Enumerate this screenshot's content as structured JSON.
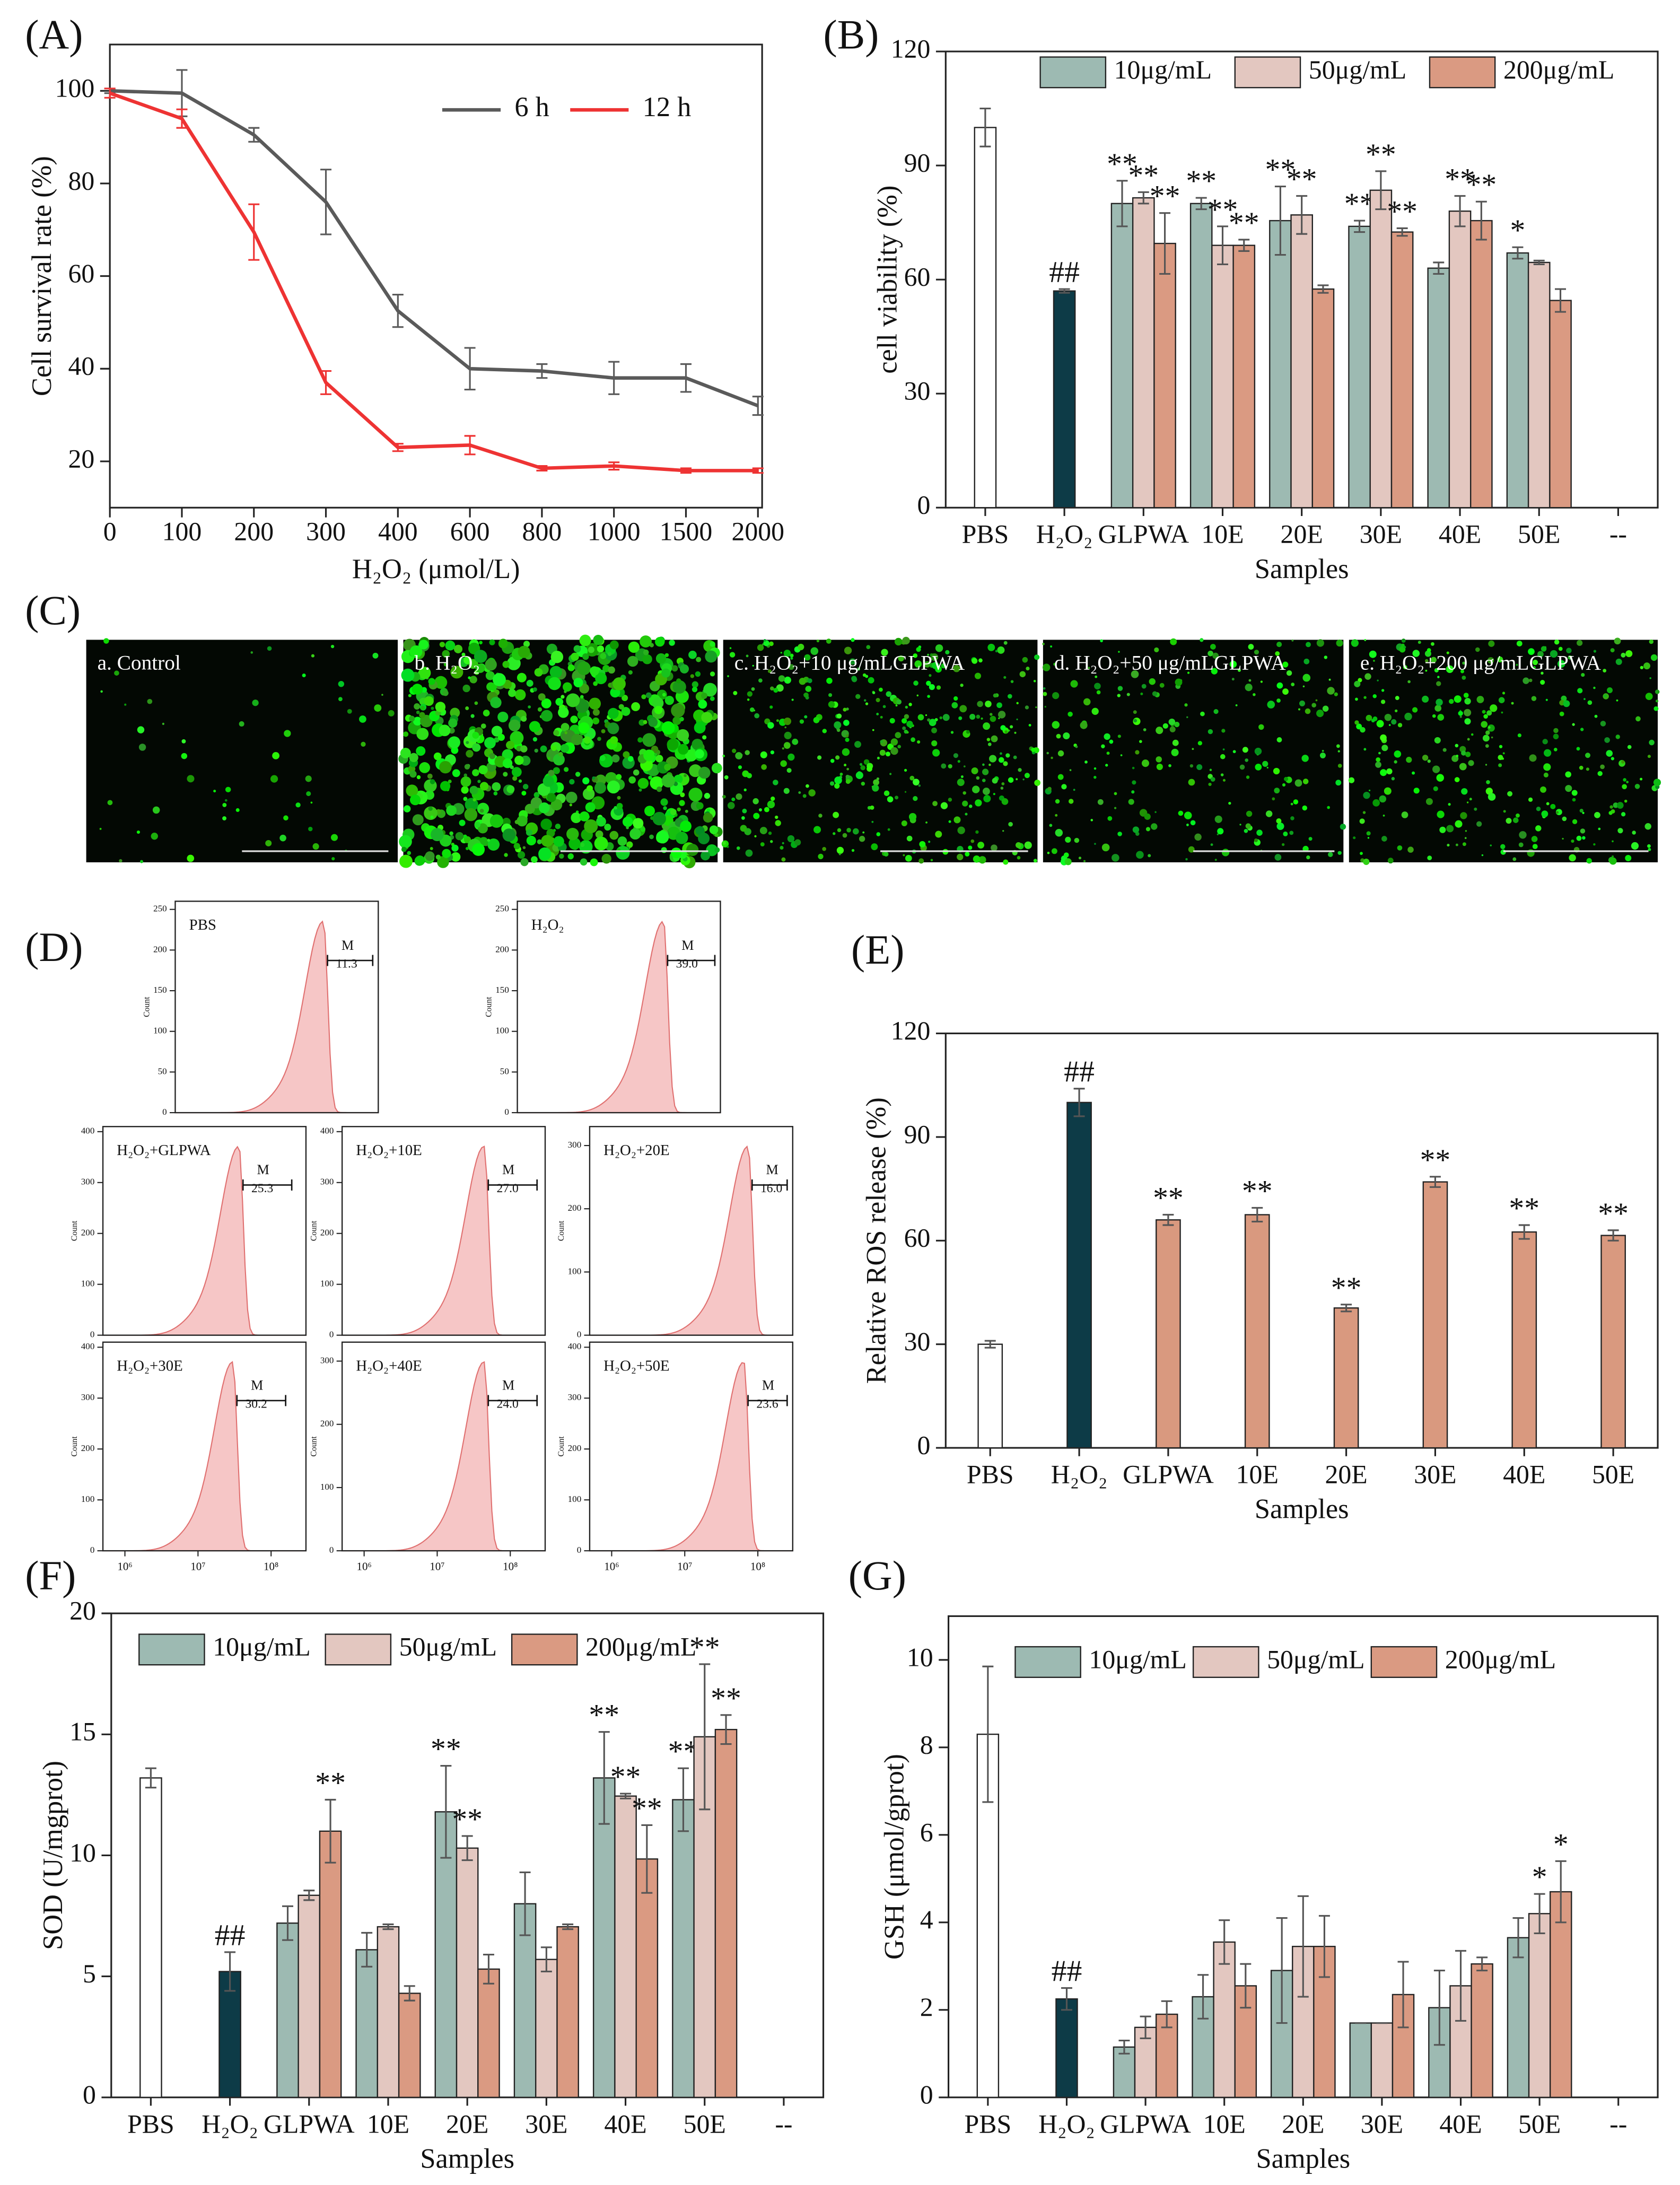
{
  "chart_data": [
    {
      "type": "line",
      "label": "(A)",
      "x_label": "H₂O₂ (μmol/L)",
      "y_label": "Cell survival rate  (%)",
      "categories": [
        "0",
        "100",
        "200",
        "300",
        "400",
        "600",
        "800",
        "1000",
        "1500",
        "2000"
      ],
      "ylim": [
        10,
        110
      ],
      "yticks": [
        20,
        40,
        60,
        80,
        100
      ],
      "legend": "upper right",
      "series": [
        {
          "name": "6 h",
          "color": "#5a5a5a",
          "values": [
            100,
            99.5,
            90.5,
            76,
            52.5,
            40,
            39.5,
            38,
            38,
            32
          ],
          "errors": [
            0.5,
            5,
            1.5,
            7,
            3.5,
            4.5,
            1.5,
            3.5,
            3,
            2
          ]
        },
        {
          "name": "12 h",
          "color": "#ee3333",
          "values": [
            99.5,
            94,
            69.5,
            37,
            23,
            23.5,
            18.5,
            19,
            18,
            18
          ],
          "errors": [
            1,
            2,
            6,
            2.5,
            0.8,
            2,
            0.5,
            0.8,
            0.5,
            0.5
          ]
        }
      ]
    },
    {
      "type": "bar",
      "label": "(B)",
      "x_label": "Samples",
      "y_label": "cell viability (%)",
      "categories": [
        "PBS",
        "H₂O₂",
        "GLPWA",
        "10E",
        "20E",
        "30E",
        "40E",
        "50E",
        "--"
      ],
      "ylim": [
        0,
        120
      ],
      "yticks": [
        0,
        30,
        60,
        90,
        120
      ],
      "legend": "upper center",
      "controls": [
        {
          "value": 100,
          "error": 5,
          "color": "#ffffff"
        },
        {
          "value": 57,
          "error": 0.5,
          "color": "#0d3b47",
          "annotation": "##"
        }
      ],
      "series": [
        {
          "name": "10μg/mL",
          "color": "#9dbab2",
          "values": [
            null,
            null,
            80,
            80,
            75.5,
            74,
            63,
            67,
            null
          ],
          "errors": [
            null,
            null,
            6,
            1.5,
            9,
            1.5,
            1.5,
            1.5,
            null
          ],
          "annotations": [
            null,
            null,
            "**",
            "**",
            "**",
            "**",
            null,
            "*",
            null
          ]
        },
        {
          "name": "50μg/mL",
          "color": "#e3c7c0",
          "values": [
            null,
            null,
            81.5,
            69,
            77,
            83.5,
            78,
            64.5,
            null
          ],
          "errors": [
            null,
            null,
            1.5,
            5,
            5,
            5,
            4,
            0.5,
            null
          ],
          "annotations": [
            null,
            null,
            "**",
            "**",
            "**",
            "**",
            "**",
            null,
            null
          ]
        },
        {
          "name": "200μg/mL",
          "color": "#da9a82",
          "values": [
            null,
            null,
            69.5,
            69,
            57.5,
            72.5,
            75.5,
            54.5,
            null
          ],
          "errors": [
            null,
            null,
            8,
            1.5,
            1,
            1,
            5,
            3,
            null
          ],
          "annotations": [
            null,
            null,
            "**",
            "**",
            null,
            "**",
            "**",
            null,
            null
          ]
        }
      ]
    },
    {
      "type": "image",
      "label": "(C)",
      "images": [
        {
          "title": "a. Control"
        },
        {
          "title": "b. H₂O₂"
        },
        {
          "title": "c. H₂O₂+10 μg/mLGLPWA"
        },
        {
          "title": "d. H₂O₂+50 μg/mLGLPWA"
        },
        {
          "title": "e. H₂O₂+200 μg/mLGLPWA"
        }
      ]
    },
    {
      "type": "flow",
      "label": "(D)",
      "y_label": "Count",
      "log_x": true,
      "color": "#f6c6c6",
      "xlim": [
        500000,
        300000000
      ],
      "xticks": [
        {
          "value": 1000000,
          "label": "10⁶"
        },
        {
          "value": 10000000,
          "label": "10⁷"
        },
        {
          "value": 100000000,
          "label": "10⁸"
        }
      ],
      "panels": [
        {
          "title": "PBS",
          "gate": "M",
          "gate_value": "11.3",
          "ylim": [
            0,
            260
          ],
          "yticks": [
            0,
            50,
            100,
            150,
            200,
            250
          ]
        },
        {
          "title": "H₂O₂",
          "gate": "M",
          "gate_value": "39.0",
          "ylim": [
            0,
            260
          ],
          "yticks": [
            0,
            50,
            100,
            150,
            200,
            250
          ]
        },
        {
          "title": "H₂O₂+GLPWA",
          "gate": "M",
          "gate_value": "25.3",
          "ylim": [
            0,
            410
          ],
          "yticks": [
            0,
            100,
            200,
            300,
            400
          ]
        },
        {
          "title": "H₂O₂+10E",
          "gate": "M",
          "gate_value": "27.0",
          "ylim": [
            0,
            410
          ],
          "yticks": [
            0,
            100,
            200,
            300,
            400
          ]
        },
        {
          "title": "H₂O₂+20E",
          "gate": "M",
          "gate_value": "16.0",
          "ylim": [
            0,
            330
          ],
          "yticks": [
            0,
            100,
            200,
            300
          ]
        },
        {
          "title": "H₂O₂+30E",
          "gate": "M",
          "gate_value": "30.2",
          "ylim": [
            0,
            410
          ],
          "yticks": [
            0,
            100,
            200,
            300,
            400
          ]
        },
        {
          "title": "H₂O₂+40E",
          "gate": "M",
          "gate_value": "24.0",
          "ylim": [
            0,
            330
          ],
          "yticks": [
            0,
            100,
            200,
            300
          ]
        },
        {
          "title": "H₂O₂+50E",
          "gate": "M",
          "gate_value": "23.6",
          "ylim": [
            0,
            410
          ],
          "yticks": [
            0,
            100,
            200,
            300,
            400
          ]
        }
      ]
    },
    {
      "type": "bar",
      "label": "(E)",
      "x_label": "Samples",
      "y_label": "Relative ROS release (%)",
      "categories": [
        "PBS",
        "H₂O₂",
        "GLPWA",
        "10E",
        "20E",
        "30E",
        "40E",
        "50E"
      ],
      "ylim": [
        0,
        120
      ],
      "yticks": [
        0,
        30,
        60,
        90,
        120
      ],
      "values": [
        30,
        100,
        66,
        67.5,
        40.5,
        77,
        62.5,
        61.5
      ],
      "errors": [
        1,
        4,
        1.5,
        2,
        1,
        1.5,
        2,
        1.5
      ],
      "colors": [
        "#ffffff",
        "#0d3b47",
        "#d9997f",
        "#d9997f",
        "#d9997f",
        "#d9997f",
        "#d9997f",
        "#d9997f"
      ],
      "annotations": [
        null,
        "##",
        "**",
        "**",
        "**",
        "**",
        "**",
        "**"
      ]
    },
    {
      "type": "bar",
      "label": "(F)",
      "x_label": "Samples",
      "y_label": "SOD (U/mgprot)",
      "categories": [
        "PBS",
        "H₂O₂",
        "GLPWA",
        "10E",
        "20E",
        "30E",
        "40E",
        "50E",
        "--"
      ],
      "ylim": [
        0,
        20
      ],
      "yticks": [
        0,
        5,
        10,
        15,
        20
      ],
      "legend": "upper left",
      "controls": [
        {
          "value": 13.2,
          "error": 0.4,
          "color": "#ffffff"
        },
        {
          "value": 5.2,
          "error": 0.8,
          "color": "#0d3b47",
          "annotation": "##"
        }
      ],
      "series": [
        {
          "name": "10μg/mL",
          "color": "#9dbab2",
          "values": [
            null,
            null,
            7.2,
            6.1,
            11.8,
            8,
            13.2,
            12.3,
            null
          ],
          "errors": [
            null,
            null,
            0.7,
            0.7,
            1.9,
            1.3,
            1.9,
            1.3,
            null
          ],
          "annotations": [
            null,
            null,
            null,
            null,
            "**",
            null,
            "**",
            "**",
            null
          ]
        },
        {
          "name": "50μg/mL",
          "color": "#e3c7c0",
          "values": [
            null,
            null,
            8.35,
            7.05,
            10.3,
            5.7,
            12.45,
            14.9,
            null
          ],
          "errors": [
            null,
            null,
            0.2,
            0.1,
            0.5,
            0.5,
            0.1,
            3,
            null
          ],
          "annotations": [
            null,
            null,
            null,
            null,
            "**",
            null,
            "**",
            "**",
            null
          ]
        },
        {
          "name": "200μg/mL",
          "color": "#da9a82",
          "values": [
            null,
            null,
            11,
            4.3,
            5.3,
            7.05,
            9.85,
            15.2,
            null
          ],
          "errors": [
            null,
            null,
            1.3,
            0.3,
            0.6,
            0.1,
            1.4,
            0.6,
            null
          ],
          "annotations": [
            null,
            null,
            "**",
            null,
            null,
            null,
            "**",
            "**",
            null
          ]
        }
      ]
    },
    {
      "type": "bar",
      "label": "(G)",
      "x_label": "Samples",
      "y_label": "GSH (μmol/gprot)",
      "categories": [
        "PBS",
        "H₂O₂",
        "GLPWA",
        "10E",
        "20E",
        "30E",
        "40E",
        "50E",
        "--"
      ],
      "ylim": [
        0,
        11
      ],
      "yticks": [
        0,
        2,
        4,
        6,
        8,
        10
      ],
      "legend": "upper center",
      "controls": [
        {
          "value": 8.3,
          "error": 1.55,
          "color": "#ffffff"
        },
        {
          "value": 2.25,
          "error": 0.25,
          "color": "#0d3b47",
          "annotation": "##"
        }
      ],
      "series": [
        {
          "name": "10μg/mL",
          "color": "#9dbab2",
          "values": [
            null,
            null,
            1.15,
            2.3,
            2.9,
            1.7,
            2.05,
            3.65,
            null
          ],
          "errors": [
            null,
            null,
            0.15,
            0.5,
            1.2,
            0,
            0.85,
            0.45,
            null
          ]
        },
        {
          "name": "50μg/mL",
          "color": "#e3c7c0",
          "values": [
            null,
            null,
            1.6,
            3.55,
            3.45,
            1.7,
            2.55,
            4.2,
            null
          ],
          "errors": [
            null,
            null,
            0.25,
            0.5,
            1.15,
            0,
            0.8,
            0.45,
            null
          ],
          "annotations": [
            null,
            null,
            null,
            null,
            null,
            null,
            null,
            "*",
            null
          ]
        },
        {
          "name": "200μg/mL",
          "color": "#da9a82",
          "values": [
            null,
            null,
            1.9,
            2.55,
            3.45,
            2.35,
            3.05,
            4.7,
            null
          ],
          "errors": [
            null,
            null,
            0.3,
            0.5,
            0.7,
            0.75,
            0.15,
            0.7,
            null
          ],
          "annotations": [
            null,
            null,
            null,
            null,
            null,
            null,
            null,
            "*",
            null
          ]
        }
      ]
    }
  ]
}
